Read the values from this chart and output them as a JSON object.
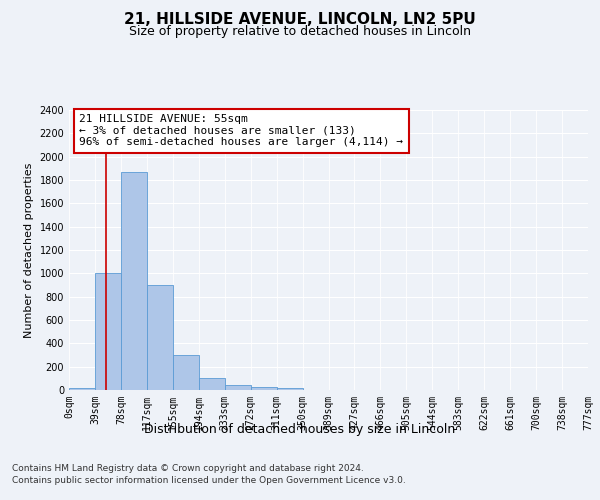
{
  "title1": "21, HILLSIDE AVENUE, LINCOLN, LN2 5PU",
  "title2": "Size of property relative to detached houses in Lincoln",
  "xlabel": "Distribution of detached houses by size in Lincoln",
  "ylabel": "Number of detached properties",
  "bin_labels": [
    "0sqm",
    "39sqm",
    "78sqm",
    "117sqm",
    "155sqm",
    "194sqm",
    "233sqm",
    "272sqm",
    "311sqm",
    "350sqm",
    "389sqm",
    "427sqm",
    "466sqm",
    "505sqm",
    "544sqm",
    "583sqm",
    "622sqm",
    "661sqm",
    "700sqm",
    "738sqm",
    "777sqm"
  ],
  "bar_values": [
    20,
    1000,
    1870,
    900,
    300,
    105,
    40,
    25,
    20,
    0,
    0,
    0,
    0,
    0,
    0,
    0,
    0,
    0,
    0,
    0
  ],
  "bar_color": "#aec6e8",
  "bar_edge_color": "#5b9bd5",
  "annotation_text": "21 HILLSIDE AVENUE: 55sqm\n← 3% of detached houses are smaller (133)\n96% of semi-detached houses are larger (4,114) →",
  "annotation_box_facecolor": "#ffffff",
  "annotation_box_edgecolor": "#cc0000",
  "vline_color": "#cc0000",
  "ylim": [
    0,
    2400
  ],
  "yticks": [
    0,
    200,
    400,
    600,
    800,
    1000,
    1200,
    1400,
    1600,
    1800,
    2000,
    2200,
    2400
  ],
  "footer1": "Contains HM Land Registry data © Crown copyright and database right 2024.",
  "footer2": "Contains public sector information licensed under the Open Government Licence v3.0.",
  "bg_color": "#eef2f8",
  "plot_bg_color": "#eef2f8",
  "title1_fontsize": 11,
  "title2_fontsize": 9,
  "xlabel_fontsize": 9,
  "ylabel_fontsize": 8,
  "tick_fontsize": 7,
  "annot_fontsize": 8,
  "footer_fontsize": 6.5
}
